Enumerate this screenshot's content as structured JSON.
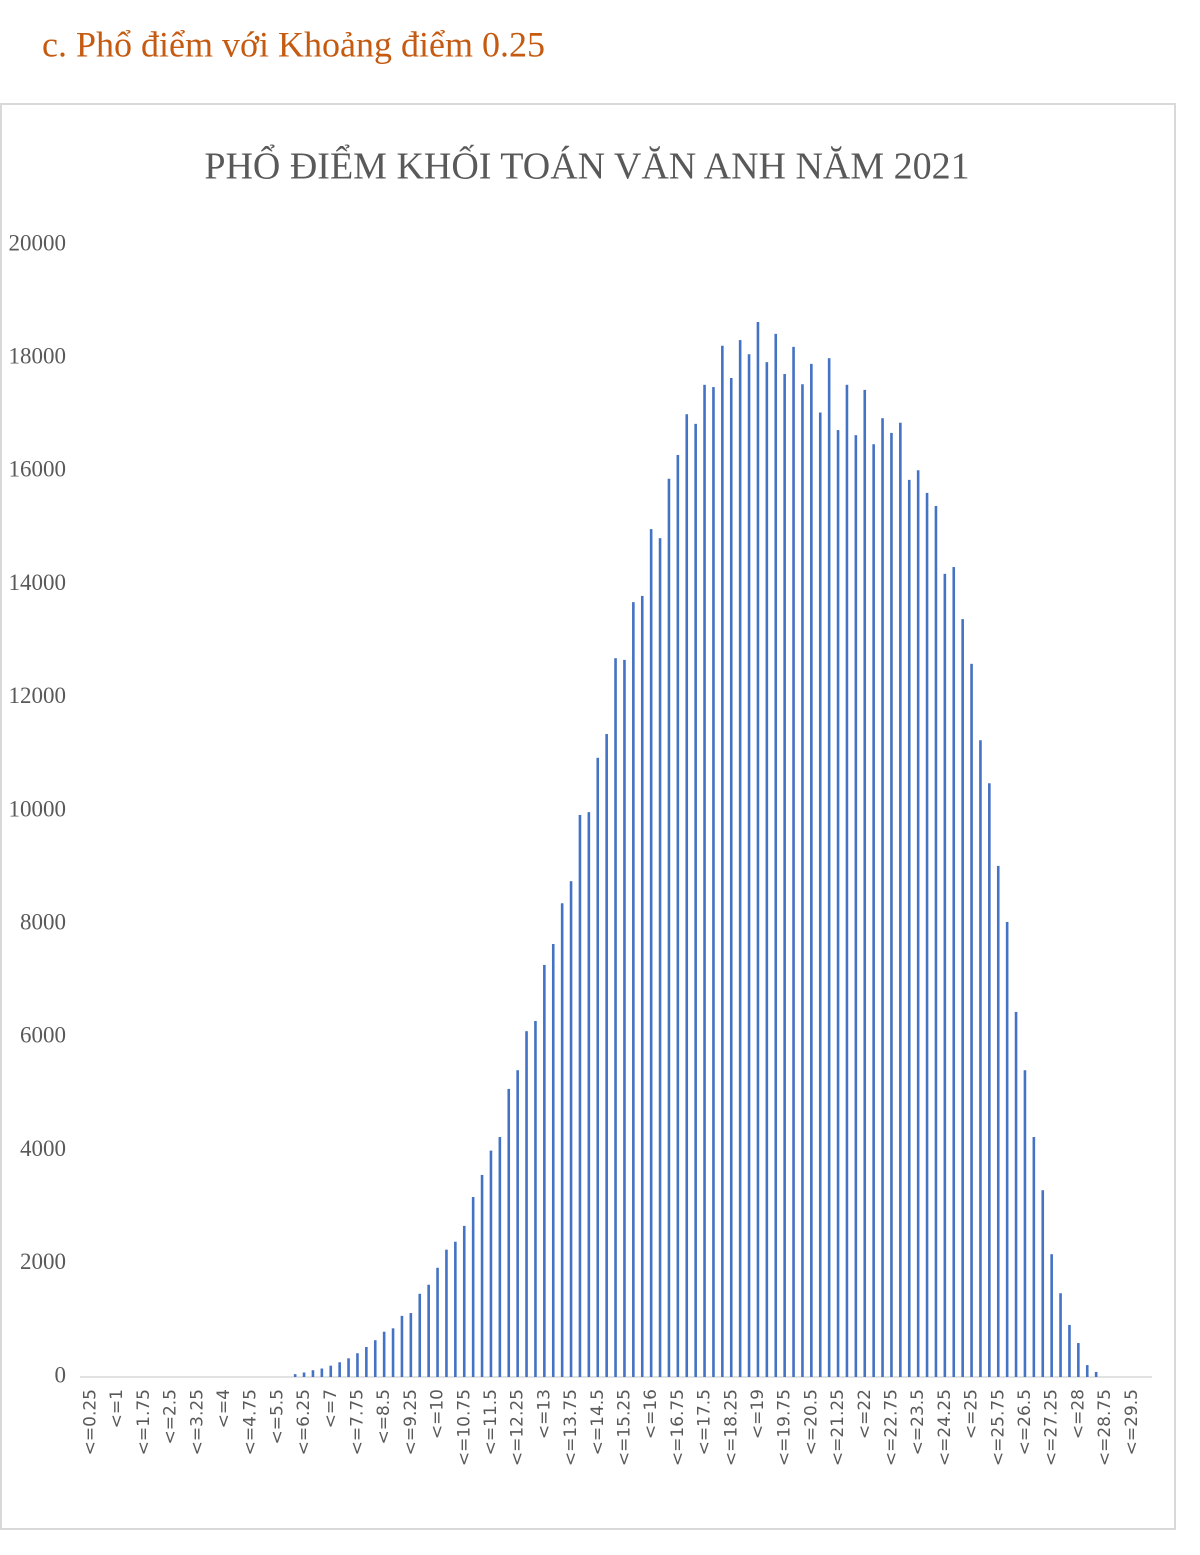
{
  "heading": "c.   Phổ điểm với Khoảng điểm 0.25",
  "chart_data": {
    "type": "bar",
    "title": "PHỔ ĐIỂM KHỐI  TOÁN VĂN ANH  NĂM 2021",
    "color": "#4472c4",
    "categories": [
      "<=0.25",
      null,
      null,
      "<=1",
      null,
      null,
      "<=1.75",
      null,
      null,
      "<=2.5",
      null,
      null,
      "<=3.25",
      null,
      null,
      "<=4",
      null,
      null,
      "<=4.75",
      null,
      null,
      "<=5.5",
      null,
      null,
      "<=6.25",
      null,
      null,
      "<=7",
      null,
      null,
      "<=7.75",
      null,
      null,
      "<=8.5",
      null,
      null,
      "<=9.25",
      null,
      null,
      "<=10",
      null,
      null,
      "<=10.75",
      null,
      null,
      "<=11.5",
      null,
      null,
      "<=12.25",
      null,
      null,
      "<=13",
      null,
      null,
      "<=13.75",
      null,
      null,
      "<=14.5",
      null,
      null,
      "<=15.25",
      null,
      null,
      "<=16",
      null,
      null,
      "<=16.75",
      null,
      null,
      "<=17.5",
      null,
      null,
      "<=18.25",
      null,
      null,
      "<=19",
      null,
      null,
      "<=19.75",
      null,
      null,
      "<=20.5",
      null,
      null,
      "<=21.25",
      null,
      null,
      "<=22",
      null,
      null,
      "<=22.75",
      null,
      null,
      "<=23.5",
      null,
      null,
      "<=24.25",
      null,
      null,
      "<=25",
      null,
      null,
      "<=25.75",
      null,
      null,
      "<=26.5",
      null,
      null,
      "<=27.25",
      null,
      null,
      "<=28",
      null,
      null,
      "<=28.75",
      null,
      null,
      "<=29.5",
      null,
      null
    ],
    "values": [
      0,
      0,
      0,
      0,
      0,
      0,
      0,
      0,
      0,
      0,
      0,
      0,
      0,
      0,
      0,
      0,
      0,
      0,
      0,
      0,
      0,
      0,
      0,
      50,
      80,
      120,
      150,
      200,
      260,
      330,
      420,
      530,
      650,
      800,
      860,
      1080,
      1130,
      1470,
      1630,
      1930,
      2250,
      2390,
      2670,
      3180,
      3570,
      4000,
      4240,
      5090,
      5420,
      6110,
      6290,
      7280,
      7650,
      8370,
      8760,
      9930,
      9980,
      10940,
      11360,
      12700,
      12670,
      13690,
      13800,
      14980,
      14820,
      15870,
      16290,
      17010,
      16840,
      17530,
      17490,
      18220,
      17650,
      18320,
      18070,
      18640,
      17930,
      18430,
      17720,
      18200,
      17540,
      17900,
      17040,
      18000,
      16730,
      17530,
      16640,
      17440,
      16480,
      16940,
      16680,
      16860,
      15850,
      16020,
      15620,
      15390,
      14190,
      14310,
      13390,
      12600,
      11250,
      10490,
      9030,
      8040,
      6450,
      5420,
      4240,
      3300,
      2170,
      1480,
      920,
      600,
      210,
      90,
      0,
      0,
      0,
      0,
      0,
      0
    ],
    "ylim": [
      0,
      20000
    ],
    "yticks": [
      0,
      2000,
      4000,
      6000,
      8000,
      10000,
      12000,
      14000,
      16000,
      18000,
      20000
    ],
    "grid": false
  }
}
